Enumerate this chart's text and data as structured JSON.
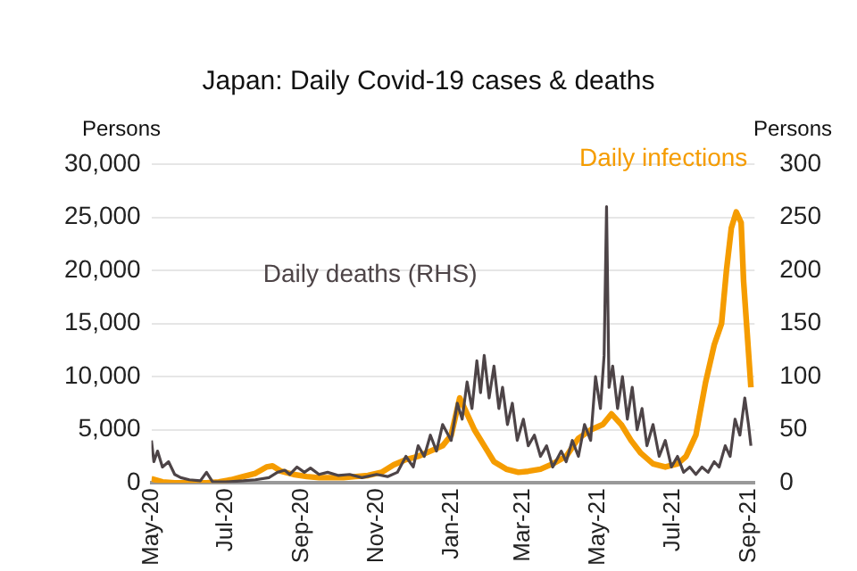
{
  "chart_data": {
    "type": "line",
    "title": "Japan: Daily Covid-19 cases & deaths",
    "ylabel": "Persons",
    "y2label": "Persons",
    "xlim": [
      "2020-05-01",
      "2021-09-06"
    ],
    "xticks": [
      {
        "value": "2020-05-01",
        "label": "May-20"
      },
      {
        "value": "2020-07-01",
        "label": "Jul-20"
      },
      {
        "value": "2020-09-01",
        "label": "Sep-20"
      },
      {
        "value": "2020-11-01",
        "label": "Nov-20"
      },
      {
        "value": "2021-01-01",
        "label": "Jan-21"
      },
      {
        "value": "2021-03-01",
        "label": "Mar-21"
      },
      {
        "value": "2021-05-01",
        "label": "May-21"
      },
      {
        "value": "2021-07-01",
        "label": "Jul-21"
      },
      {
        "value": "2021-09-01",
        "label": "Sep-21"
      }
    ],
    "ylim": [
      0,
      30000
    ],
    "yticks": [
      0,
      {
        "value": 5000,
        "label": "5,000"
      },
      {
        "value": 10000,
        "label": "10,000"
      },
      {
        "value": 15000,
        "label": "15,000"
      },
      {
        "value": 20000,
        "label": "20,000"
      },
      {
        "value": 25000,
        "label": "25,000"
      },
      {
        "value": 30000,
        "label": "30,000"
      }
    ],
    "y2lim": [
      0,
      300
    ],
    "y2ticks": [
      0,
      50,
      100,
      150,
      200,
      250,
      300
    ],
    "grid": "y",
    "legend": false,
    "marker": "none",
    "line_style": "solid",
    "series": [
      {
        "name": "Daily infections",
        "color": "#f59c00",
        "x": [
          "2020-05-01",
          "2020-05-10",
          "2020-05-20",
          "2020-06-01",
          "2020-06-15",
          "2020-06-25",
          "2020-07-05",
          "2020-07-15",
          "2020-07-25",
          "2020-08-03",
          "2020-08-08",
          "2020-08-15",
          "2020-08-25",
          "2020-09-05",
          "2020-09-15",
          "2020-09-25",
          "2020-10-05",
          "2020-10-15",
          "2020-10-25",
          "2020-11-05",
          "2020-11-15",
          "2020-11-25",
          "2020-12-05",
          "2020-12-15",
          "2020-12-25",
          "2021-01-01",
          "2021-01-08",
          "2021-01-14",
          "2021-01-20",
          "2021-01-28",
          "2021-02-05",
          "2021-02-15",
          "2021-02-25",
          "2021-03-05",
          "2021-03-15",
          "2021-03-25",
          "2021-04-05",
          "2021-04-15",
          "2021-04-25",
          "2021-05-05",
          "2021-05-12",
          "2021-05-20",
          "2021-05-28",
          "2021-06-05",
          "2021-06-15",
          "2021-06-25",
          "2021-07-05",
          "2021-07-12",
          "2021-07-20",
          "2021-07-28",
          "2021-08-04",
          "2021-08-10",
          "2021-08-14",
          "2021-08-18",
          "2021-08-22",
          "2021-08-26",
          "2021-08-28",
          "2021-08-31",
          "2021-09-03"
        ],
        "values": [
          400,
          100,
          0,
          0,
          0,
          100,
          300,
          600,
          900,
          1500,
          1600,
          1100,
          800,
          600,
          500,
          500,
          500,
          600,
          700,
          1000,
          1700,
          2200,
          2500,
          3000,
          3500,
          4500,
          8000,
          6500,
          5000,
          3500,
          2000,
          1300,
          1000,
          1100,
          1300,
          1800,
          2500,
          4200,
          5000,
          5500,
          6500,
          5500,
          4000,
          2800,
          1800,
          1500,
          1800,
          2500,
          4500,
          9500,
          13000,
          15000,
          20000,
          24000,
          25500,
          24500,
          19000,
          14000,
          9000
        ]
      },
      {
        "name": "Daily deaths (RHS)",
        "color": "#4d4447",
        "axis": "y2",
        "x": [
          "2020-05-01",
          "2020-05-03",
          "2020-05-06",
          "2020-05-10",
          "2020-05-15",
          "2020-05-20",
          "2020-05-25",
          "2020-06-01",
          "2020-06-10",
          "2020-06-15",
          "2020-06-20",
          "2020-07-01",
          "2020-07-15",
          "2020-07-25",
          "2020-08-05",
          "2020-08-12",
          "2020-08-18",
          "2020-08-22",
          "2020-08-28",
          "2020-09-03",
          "2020-09-08",
          "2020-09-15",
          "2020-09-22",
          "2020-10-01",
          "2020-10-10",
          "2020-10-20",
          "2020-11-01",
          "2020-11-10",
          "2020-11-18",
          "2020-11-25",
          "2020-12-01",
          "2020-12-05",
          "2020-12-10",
          "2020-12-15",
          "2020-12-20",
          "2020-12-25",
          "2021-01-01",
          "2021-01-06",
          "2021-01-10",
          "2021-01-14",
          "2021-01-18",
          "2021-01-22",
          "2021-01-25",
          "2021-01-28",
          "2021-02-01",
          "2021-02-05",
          "2021-02-09",
          "2021-02-12",
          "2021-02-16",
          "2021-02-20",
          "2021-02-24",
          "2021-03-01",
          "2021-03-05",
          "2021-03-10",
          "2021-03-15",
          "2021-03-20",
          "2021-03-25",
          "2021-04-01",
          "2021-04-05",
          "2021-04-10",
          "2021-04-15",
          "2021-04-20",
          "2021-04-25",
          "2021-04-29",
          "2021-05-03",
          "2021-05-06",
          "2021-05-08",
          "2021-05-10",
          "2021-05-13",
          "2021-05-17",
          "2021-05-21",
          "2021-05-25",
          "2021-05-29",
          "2021-06-02",
          "2021-06-06",
          "2021-06-10",
          "2021-06-15",
          "2021-06-20",
          "2021-06-25",
          "2021-06-30",
          "2021-07-05",
          "2021-07-10",
          "2021-07-15",
          "2021-07-20",
          "2021-07-25",
          "2021-07-30",
          "2021-08-04",
          "2021-08-08",
          "2021-08-13",
          "2021-08-17",
          "2021-08-21",
          "2021-08-25",
          "2021-08-29",
          "2021-09-01",
          "2021-09-03"
        ],
        "values": [
          40,
          20,
          30,
          15,
          20,
          8,
          5,
          3,
          2,
          10,
          1,
          1,
          2,
          3,
          5,
          10,
          12,
          8,
          15,
          10,
          14,
          8,
          10,
          7,
          8,
          5,
          8,
          6,
          10,
          25,
          15,
          35,
          25,
          45,
          30,
          55,
          40,
          75,
          60,
          95,
          70,
          115,
          85,
          120,
          80,
          110,
          70,
          90,
          55,
          75,
          40,
          60,
          35,
          45,
          25,
          35,
          15,
          30,
          20,
          40,
          25,
          55,
          40,
          100,
          70,
          120,
          260,
          90,
          110,
          70,
          100,
          60,
          90,
          50,
          70,
          35,
          55,
          25,
          40,
          15,
          25,
          10,
          15,
          8,
          15,
          10,
          20,
          15,
          35,
          25,
          60,
          45,
          80,
          55,
          35
        ]
      }
    ]
  }
}
